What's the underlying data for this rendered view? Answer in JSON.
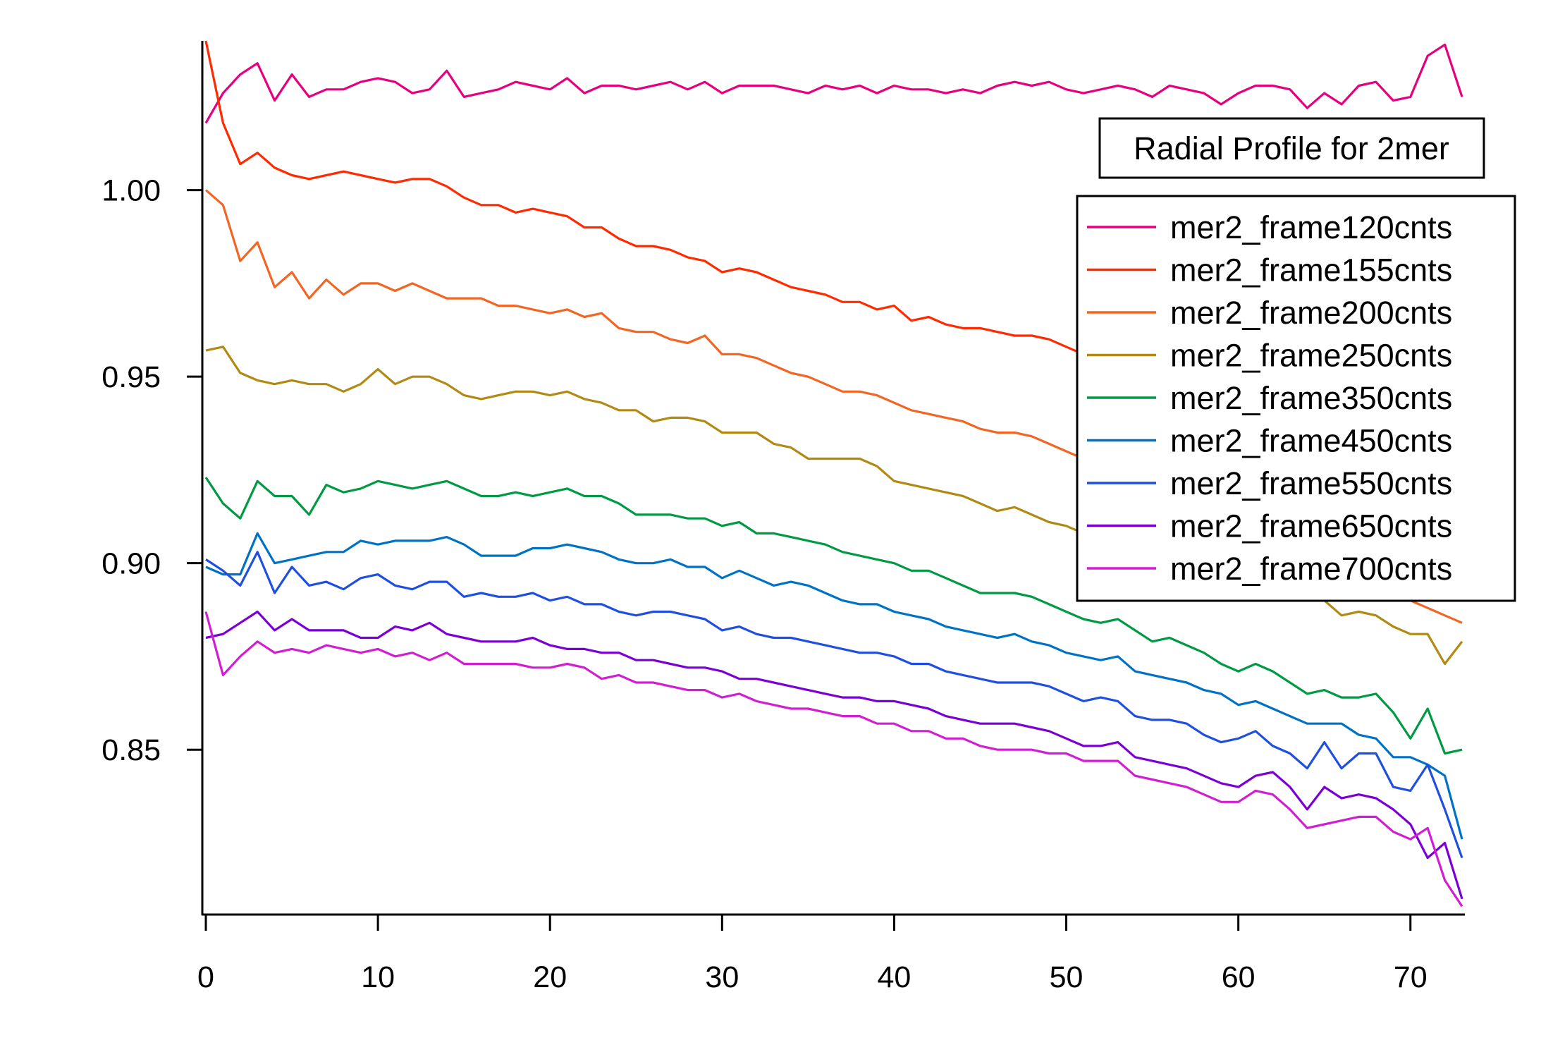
{
  "chart_data": {
    "type": "line",
    "title": "Radial Profile for 2mer",
    "xlabel": "",
    "ylabel": "",
    "xlim": [
      0,
      73
    ],
    "ylim": [
      0.806,
      1.04
    ],
    "xticks": [
      0,
      10,
      20,
      30,
      40,
      50,
      60,
      70
    ],
    "yticks": [
      0.85,
      0.9,
      0.95,
      1.0
    ],
    "xtick_labels": [
      "0",
      "10",
      "20",
      "30",
      "40",
      "50",
      "60",
      "70"
    ],
    "ytick_labels": [
      "0.85",
      "0.90",
      "0.95",
      "1.00"
    ],
    "grid": false,
    "legend_position": "right",
    "x": [
      0,
      1,
      2,
      3,
      4,
      5,
      6,
      7,
      8,
      9,
      10,
      11,
      12,
      13,
      14,
      15,
      16,
      17,
      18,
      19,
      20,
      21,
      22,
      23,
      24,
      25,
      26,
      27,
      28,
      29,
      30,
      31,
      32,
      33,
      34,
      35,
      36,
      37,
      38,
      39,
      40,
      41,
      42,
      43,
      44,
      45,
      46,
      47,
      48,
      49,
      50,
      51,
      52,
      53,
      54,
      55,
      56,
      57,
      58,
      59,
      60,
      61,
      62,
      63,
      64,
      65,
      66,
      67,
      68,
      69,
      70,
      71,
      72,
      73
    ],
    "series": [
      {
        "name": "mer2_frame120cnts",
        "color": "#e6007e",
        "values": [
          1.018,
          1.026,
          1.031,
          1.034,
          1.024,
          1.031,
          1.025,
          1.027,
          1.027,
          1.029,
          1.03,
          1.029,
          1.026,
          1.027,
          1.032,
          1.025,
          1.026,
          1.027,
          1.029,
          1.028,
          1.027,
          1.03,
          1.026,
          1.028,
          1.028,
          1.027,
          1.028,
          1.029,
          1.027,
          1.029,
          1.026,
          1.028,
          1.028,
          1.028,
          1.027,
          1.026,
          1.028,
          1.027,
          1.028,
          1.026,
          1.028,
          1.027,
          1.027,
          1.026,
          1.027,
          1.026,
          1.028,
          1.029,
          1.028,
          1.029,
          1.027,
          1.026,
          1.027,
          1.028,
          1.027,
          1.025,
          1.028,
          1.027,
          1.026,
          1.023,
          1.026,
          1.028,
          1.028,
          1.027,
          1.022,
          1.026,
          1.023,
          1.028,
          1.029,
          1.024,
          1.025,
          1.036,
          1.039,
          1.025
        ]
      },
      {
        "name": "mer2_frame155cnts",
        "color": "#ff2a00",
        "values": [
          1.04,
          1.018,
          1.007,
          1.01,
          1.006,
          1.004,
          1.003,
          1.004,
          1.005,
          1.004,
          1.003,
          1.002,
          1.003,
          1.003,
          1.001,
          0.998,
          0.996,
          0.996,
          0.994,
          0.995,
          0.994,
          0.993,
          0.99,
          0.99,
          0.987,
          0.985,
          0.985,
          0.984,
          0.982,
          0.981,
          0.978,
          0.979,
          0.978,
          0.976,
          0.974,
          0.973,
          0.972,
          0.97,
          0.97,
          0.968,
          0.969,
          0.965,
          0.966,
          0.964,
          0.963,
          0.963,
          0.962,
          0.961,
          0.961,
          0.96,
          0.958,
          0.956,
          0.955,
          0.954,
          0.953,
          0.951,
          0.95,
          0.948,
          0.946,
          0.944,
          0.943,
          0.941,
          0.939,
          0.937,
          0.935,
          0.933,
          0.931,
          0.93,
          0.928,
          0.926,
          0.924,
          0.923,
          0.921,
          0.92
        ]
      },
      {
        "name": "mer2_frame200cnts",
        "color": "#f26522",
        "values": [
          1.0,
          0.996,
          0.981,
          0.986,
          0.974,
          0.978,
          0.971,
          0.976,
          0.972,
          0.975,
          0.975,
          0.973,
          0.975,
          0.973,
          0.971,
          0.971,
          0.971,
          0.969,
          0.969,
          0.968,
          0.967,
          0.968,
          0.966,
          0.967,
          0.963,
          0.962,
          0.962,
          0.96,
          0.959,
          0.961,
          0.956,
          0.956,
          0.955,
          0.953,
          0.951,
          0.95,
          0.948,
          0.946,
          0.946,
          0.945,
          0.943,
          0.941,
          0.94,
          0.939,
          0.938,
          0.936,
          0.935,
          0.935,
          0.934,
          0.932,
          0.93,
          0.928,
          0.926,
          0.924,
          0.922,
          0.92,
          0.918,
          0.916,
          0.914,
          0.912,
          0.91,
          0.908,
          0.906,
          0.904,
          0.902,
          0.9,
          0.898,
          0.896,
          0.894,
          0.892,
          0.89,
          0.888,
          0.886,
          0.884
        ]
      },
      {
        "name": "mer2_frame250cnts",
        "color": "#b08a12",
        "values": [
          0.957,
          0.958,
          0.951,
          0.949,
          0.948,
          0.949,
          0.948,
          0.948,
          0.946,
          0.948,
          0.952,
          0.948,
          0.95,
          0.95,
          0.948,
          0.945,
          0.944,
          0.945,
          0.946,
          0.946,
          0.945,
          0.946,
          0.944,
          0.943,
          0.941,
          0.941,
          0.938,
          0.939,
          0.939,
          0.938,
          0.935,
          0.935,
          0.935,
          0.932,
          0.931,
          0.928,
          0.928,
          0.928,
          0.928,
          0.926,
          0.922,
          0.921,
          0.92,
          0.919,
          0.918,
          0.916,
          0.914,
          0.915,
          0.913,
          0.911,
          0.91,
          0.908,
          0.907,
          0.905,
          0.904,
          0.903,
          0.902,
          0.901,
          0.9,
          0.899,
          0.897,
          0.896,
          0.895,
          0.893,
          0.891,
          0.89,
          0.886,
          0.887,
          0.886,
          0.883,
          0.881,
          0.881,
          0.873,
          0.879
        ]
      },
      {
        "name": "mer2_frame350cnts",
        "color": "#009a44",
        "values": [
          0.923,
          0.916,
          0.912,
          0.922,
          0.918,
          0.918,
          0.913,
          0.921,
          0.919,
          0.92,
          0.922,
          0.921,
          0.92,
          0.921,
          0.922,
          0.92,
          0.918,
          0.918,
          0.919,
          0.918,
          0.919,
          0.92,
          0.918,
          0.918,
          0.916,
          0.913,
          0.913,
          0.913,
          0.912,
          0.912,
          0.91,
          0.911,
          0.908,
          0.908,
          0.907,
          0.906,
          0.905,
          0.903,
          0.902,
          0.901,
          0.9,
          0.898,
          0.898,
          0.896,
          0.894,
          0.892,
          0.892,
          0.892,
          0.891,
          0.889,
          0.887,
          0.885,
          0.884,
          0.885,
          0.882,
          0.879,
          0.88,
          0.878,
          0.876,
          0.873,
          0.871,
          0.873,
          0.871,
          0.868,
          0.865,
          0.866,
          0.864,
          0.864,
          0.865,
          0.86,
          0.853,
          0.861,
          0.849,
          0.85
        ]
      },
      {
        "name": "mer2_frame450cnts",
        "color": "#0072c6",
        "values": [
          0.899,
          0.897,
          0.897,
          0.908,
          0.9,
          0.901,
          0.902,
          0.903,
          0.903,
          0.906,
          0.905,
          0.906,
          0.906,
          0.906,
          0.907,
          0.905,
          0.902,
          0.902,
          0.902,
          0.904,
          0.904,
          0.905,
          0.904,
          0.903,
          0.901,
          0.9,
          0.9,
          0.901,
          0.899,
          0.899,
          0.896,
          0.898,
          0.896,
          0.894,
          0.895,
          0.894,
          0.892,
          0.89,
          0.889,
          0.889,
          0.887,
          0.886,
          0.885,
          0.883,
          0.882,
          0.881,
          0.88,
          0.881,
          0.879,
          0.878,
          0.876,
          0.875,
          0.874,
          0.875,
          0.871,
          0.87,
          0.869,
          0.868,
          0.866,
          0.865,
          0.862,
          0.863,
          0.861,
          0.859,
          0.857,
          0.857,
          0.857,
          0.854,
          0.853,
          0.848,
          0.848,
          0.846,
          0.843,
          0.826
        ]
      },
      {
        "name": "mer2_frame550cnts",
        "color": "#1f4fe0",
        "values": [
          0.901,
          0.898,
          0.894,
          0.903,
          0.892,
          0.899,
          0.894,
          0.895,
          0.893,
          0.896,
          0.897,
          0.894,
          0.893,
          0.895,
          0.895,
          0.891,
          0.892,
          0.891,
          0.891,
          0.892,
          0.89,
          0.891,
          0.889,
          0.889,
          0.887,
          0.886,
          0.887,
          0.887,
          0.886,
          0.885,
          0.882,
          0.883,
          0.881,
          0.88,
          0.88,
          0.879,
          0.878,
          0.877,
          0.876,
          0.876,
          0.875,
          0.873,
          0.873,
          0.871,
          0.87,
          0.869,
          0.868,
          0.868,
          0.868,
          0.867,
          0.865,
          0.863,
          0.864,
          0.863,
          0.859,
          0.858,
          0.858,
          0.857,
          0.854,
          0.852,
          0.853,
          0.855,
          0.851,
          0.849,
          0.845,
          0.852,
          0.845,
          0.849,
          0.849,
          0.84,
          0.839,
          0.846,
          0.834,
          0.821
        ]
      },
      {
        "name": "mer2_frame650cnts",
        "color": "#7a00d6",
        "values": [
          0.88,
          0.881,
          0.884,
          0.887,
          0.882,
          0.885,
          0.882,
          0.882,
          0.882,
          0.88,
          0.88,
          0.883,
          0.882,
          0.884,
          0.881,
          0.88,
          0.879,
          0.879,
          0.879,
          0.88,
          0.878,
          0.877,
          0.877,
          0.876,
          0.876,
          0.874,
          0.874,
          0.873,
          0.872,
          0.872,
          0.871,
          0.869,
          0.869,
          0.868,
          0.867,
          0.866,
          0.865,
          0.864,
          0.864,
          0.863,
          0.863,
          0.862,
          0.861,
          0.859,
          0.858,
          0.857,
          0.857,
          0.857,
          0.856,
          0.855,
          0.853,
          0.851,
          0.851,
          0.852,
          0.848,
          0.847,
          0.846,
          0.845,
          0.843,
          0.841,
          0.84,
          0.843,
          0.844,
          0.84,
          0.834,
          0.84,
          0.837,
          0.838,
          0.837,
          0.834,
          0.83,
          0.821,
          0.825,
          0.81
        ]
      },
      {
        "name": "mer2_frame700cnts",
        "color": "#d21ed2",
        "values": [
          0.887,
          0.87,
          0.875,
          0.879,
          0.876,
          0.877,
          0.876,
          0.878,
          0.877,
          0.876,
          0.877,
          0.875,
          0.876,
          0.874,
          0.876,
          0.873,
          0.873,
          0.873,
          0.873,
          0.872,
          0.872,
          0.873,
          0.872,
          0.869,
          0.87,
          0.868,
          0.868,
          0.867,
          0.866,
          0.866,
          0.864,
          0.865,
          0.863,
          0.862,
          0.861,
          0.861,
          0.86,
          0.859,
          0.859,
          0.857,
          0.857,
          0.855,
          0.855,
          0.853,
          0.853,
          0.851,
          0.85,
          0.85,
          0.85,
          0.849,
          0.849,
          0.847,
          0.847,
          0.847,
          0.843,
          0.842,
          0.841,
          0.84,
          0.838,
          0.836,
          0.836,
          0.839,
          0.838,
          0.834,
          0.829,
          0.83,
          0.831,
          0.832,
          0.832,
          0.828,
          0.826,
          0.829,
          0.815,
          0.808
        ]
      }
    ]
  }
}
